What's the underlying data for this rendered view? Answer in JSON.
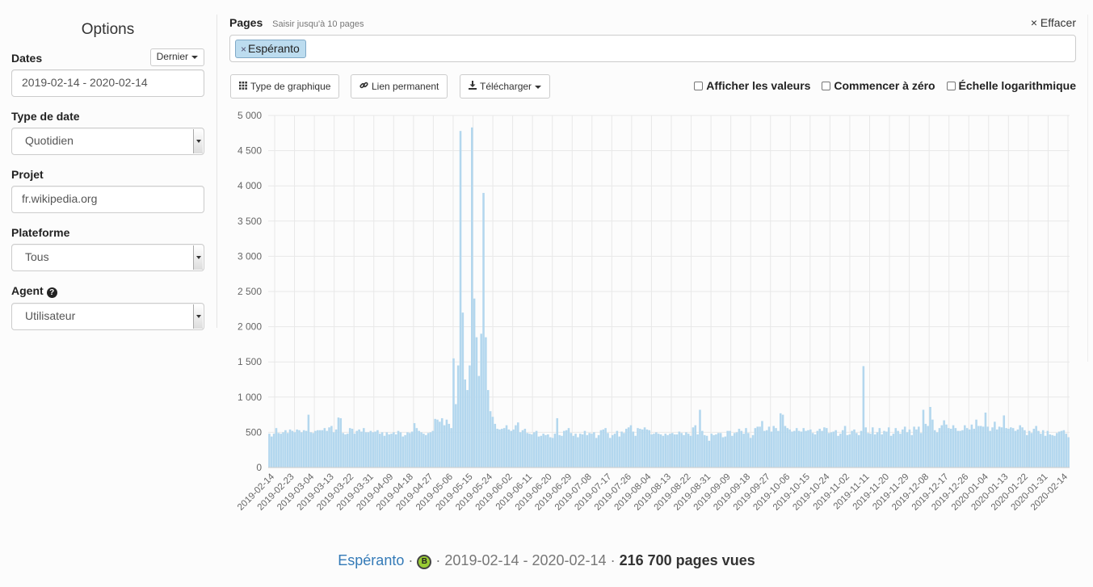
{
  "sidebar": {
    "title": "Options",
    "dates_label": "Dates",
    "dates_preset": "Dernier",
    "dates_value": "2019-02-14 - 2020-02-14",
    "date_type_label": "Type de date",
    "date_type_value": "Quotidien",
    "project_label": "Projet",
    "project_value": "fr.wikipedia.org",
    "platform_label": "Plateforme",
    "platform_value": "Tous",
    "agent_label": "Agent",
    "agent_value": "Utilisateur"
  },
  "pages": {
    "label": "Pages",
    "hint": "Saisir jusqu'à 10 pages",
    "clear": "× Effacer",
    "tag": "Espéranto"
  },
  "toolbar": {
    "chart_type": "Type de graphique",
    "permalink": "Lien permanent",
    "download": "Télécharger",
    "show_values": "Afficher les valeurs",
    "start_zero": "Commencer à zéro",
    "log_scale": "Échelle logarithmique"
  },
  "footer": {
    "article": "Espéranto",
    "sep": "·",
    "badge": "B",
    "range": "2019-02-14 - 2020-02-14",
    "total": "216 700 pages vues"
  },
  "colors": {
    "bar": "#b3d7ee",
    "grid": "#e8e8e8",
    "link": "#337ab7"
  },
  "chart_data": {
    "type": "bar",
    "title": "",
    "xlabel": "",
    "ylabel": "",
    "ylim": [
      0,
      5000
    ],
    "yticks": [
      "0",
      "500",
      "1 000",
      "1 500",
      "2 000",
      "2 500",
      "3 000",
      "3 500",
      "4 000",
      "4 500",
      "5 000"
    ],
    "ytick_values": [
      0,
      500,
      1000,
      1500,
      2000,
      2500,
      3000,
      3500,
      4000,
      4500,
      5000
    ],
    "xticks": [
      "2019-02-14",
      "2019-02-23",
      "2019-03-04",
      "2019-03-13",
      "2019-03-22",
      "2019-03-31",
      "2019-04-09",
      "2019-04-18",
      "2019-04-27",
      "2019-05-06",
      "2019-05-15",
      "2019-05-24",
      "2019-06-02",
      "2019-06-11",
      "2019-06-20",
      "2019-06-29",
      "2019-07-08",
      "2019-07-17",
      "2019-07-26",
      "2019-08-04",
      "2019-08-13",
      "2019-08-22",
      "2019-08-31",
      "2019-09-09",
      "2019-09-18",
      "2019-09-27",
      "2019-10-06",
      "2019-10-15",
      "2019-10-24",
      "2019-11-02",
      "2019-11-11",
      "2019-11-20",
      "2019-11-29",
      "2019-12-08",
      "2019-12-17",
      "2019-12-26",
      "2020-01-04",
      "2020-01-13",
      "2020-01-22",
      "2020-01-31",
      "2020-02-14"
    ],
    "series": [
      {
        "values": [
          480,
          440,
          480,
          560,
          490,
          480,
          500,
          530,
          490,
          540,
          520,
          500,
          540,
          530,
          500,
          530,
          520,
          750,
          500,
          490,
          520,
          530,
          530,
          530,
          560,
          520,
          570,
          590,
          500,
          540,
          710,
          700,
          490,
          470,
          480,
          560,
          550,
          480,
          520,
          540,
          510,
          560,
          500,
          500,
          520,
          500,
          510,
          530,
          480,
          500,
          450,
          500,
          470,
          480,
          500,
          470,
          520,
          500,
          440,
          460,
          500,
          490,
          510,
          630,
          560,
          520,
          500,
          480,
          460,
          490,
          500,
          520,
          690,
          680,
          650,
          700,
          600,
          680,
          620,
          560,
          1550,
          900,
          1450,
          4780,
          2200,
          1250,
          1100,
          1450,
          4830,
          2400,
          1850,
          1300,
          1900,
          3900,
          1850,
          1100,
          800,
          720,
          620,
          550,
          540,
          550,
          560,
          600,
          540,
          520,
          540,
          600,
          640,
          500,
          530,
          550,
          490,
          480,
          470,
          500,
          520,
          440,
          450,
          480,
          460,
          470,
          430,
          420,
          480,
          700,
          460,
          450,
          520,
          530,
          560,
          490,
          450,
          480,
          430,
          480,
          470,
          520,
          460,
          490,
          480,
          500,
          420,
          460,
          530,
          540,
          560,
          490,
          420,
          460,
          480,
          520,
          440,
          510,
          490,
          550,
          570,
          600,
          510,
          450,
          560,
          550,
          540,
          570,
          540,
          530,
          470,
          480,
          500,
          480,
          470,
          450,
          480,
          460,
          480,
          490,
          470,
          470,
          510,
          490,
          460,
          500,
          480,
          450,
          570,
          600,
          470,
          820,
          520,
          460,
          450,
          380,
          480,
          460,
          470,
          490,
          490,
          430,
          440,
          520,
          520,
          450,
          490,
          500,
          550,
          520,
          480,
          560,
          490,
          420,
          460,
          560,
          580,
          580,
          660,
          520,
          530,
          580,
          510,
          590,
          560,
          520,
          770,
          750,
          590,
          560,
          540,
          510,
          520,
          560,
          520,
          510,
          560,
          520,
          530,
          540,
          490,
          470,
          520,
          550,
          520,
          570,
          560,
          490,
          500,
          510,
          530,
          450,
          480,
          530,
          590,
          460,
          470,
          520,
          540,
          490,
          460,
          520,
          1440,
          570,
          490,
          480,
          570,
          470,
          500,
          560,
          470,
          520,
          510,
          570,
          450,
          480,
          560,
          520,
          480,
          540,
          580,
          500,
          540,
          460,
          580,
          540,
          580,
          490,
          820,
          620,
          590,
          860,
          680,
          530,
          500,
          560,
          600,
          670,
          610,
          560,
          550,
          600,
          560,
          520,
          520,
          530,
          600,
          560,
          540,
          610,
          550,
          680,
          590,
          590,
          580,
          780,
          580,
          520,
          570,
          650,
          540,
          580,
          570,
          740,
          560,
          550,
          570,
          560,
          520,
          540,
          600,
          570,
          530,
          460,
          520,
          490,
          550,
          590,
          520,
          480,
          530,
          450,
          520,
          470,
          460,
          450,
          490,
          510,
          520,
          530,
          480,
          430
        ]
      }
    ],
    "grid": true,
    "legend": "none"
  }
}
